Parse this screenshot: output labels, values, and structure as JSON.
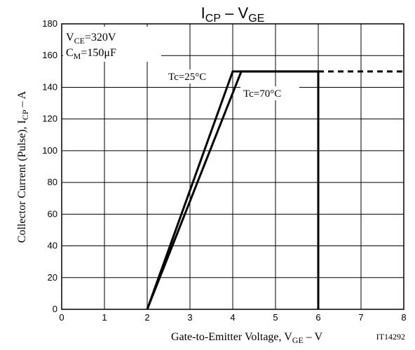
{
  "chart_data": {
    "type": "line",
    "title": {
      "main": "I",
      "main_sub": "CP",
      "sep": " – ",
      "second": "V",
      "second_sub": "GE"
    },
    "xlabel": {
      "pre": "Gate-to-Emitter Voltage, V",
      "sub": "GE",
      "post": " – V"
    },
    "ylabel": {
      "pre": "Collector Current (Pulse), I",
      "sub": "CP",
      "post": " – A"
    },
    "xlim": [
      0,
      8
    ],
    "ylim": [
      0,
      180
    ],
    "xticks": [
      "0",
      "1",
      "2",
      "3",
      "4",
      "5",
      "6",
      "7",
      "8"
    ],
    "yticks": [
      "0",
      "20",
      "40",
      "60",
      "80",
      "100",
      "120",
      "140",
      "160",
      "180"
    ],
    "grid": true,
    "conditions": [
      {
        "pre": "V",
        "sub": "CE",
        "post": "=320V"
      },
      {
        "pre": "C",
        "sub": "M",
        "post": "=150μF"
      }
    ],
    "series": [
      {
        "name": "Tc=25°C",
        "x": [
          2,
          4,
          6,
          6
        ],
        "y": [
          0,
          150,
          150,
          0
        ]
      },
      {
        "name": "Tc=70°C",
        "x": [
          2,
          4.2,
          6
        ],
        "y": [
          0,
          150,
          150
        ]
      }
    ],
    "extension": {
      "x": [
        6,
        8
      ],
      "y": [
        150,
        150
      ],
      "style": "dashed"
    },
    "code": "IT14292"
  }
}
